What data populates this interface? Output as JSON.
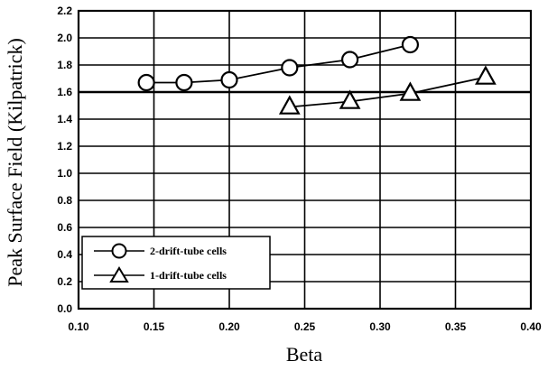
{
  "chart_data": {
    "type": "line",
    "xlabel": "Beta",
    "ylabel": "Peak Surface Field (Kilpatrick)",
    "xlim": [
      0.1,
      0.4
    ],
    "ylim": [
      0.0,
      2.2
    ],
    "xticks": [
      "0.10",
      "0.15",
      "0.20",
      "0.25",
      "0.30",
      "0.35",
      "0.40"
    ],
    "yticks": [
      "0.0",
      "0.2",
      "0.4",
      "0.6",
      "0.8",
      "1.0",
      "1.2",
      "1.4",
      "1.6",
      "1.8",
      "2.0",
      "2.2"
    ],
    "grid": true,
    "legend_position": "bottom-left",
    "series": [
      {
        "name": "2-drift-tube cells",
        "marker": "circle",
        "x": [
          0.145,
          0.17,
          0.2,
          0.24,
          0.28,
          0.32
        ],
        "y": [
          1.67,
          1.67,
          1.69,
          1.78,
          1.84,
          1.95
        ]
      },
      {
        "name": "1-drift-tube cells",
        "marker": "triangle",
        "x": [
          0.24,
          0.28,
          0.32,
          0.37
        ],
        "y": [
          1.49,
          1.53,
          1.59,
          1.71
        ]
      }
    ]
  }
}
